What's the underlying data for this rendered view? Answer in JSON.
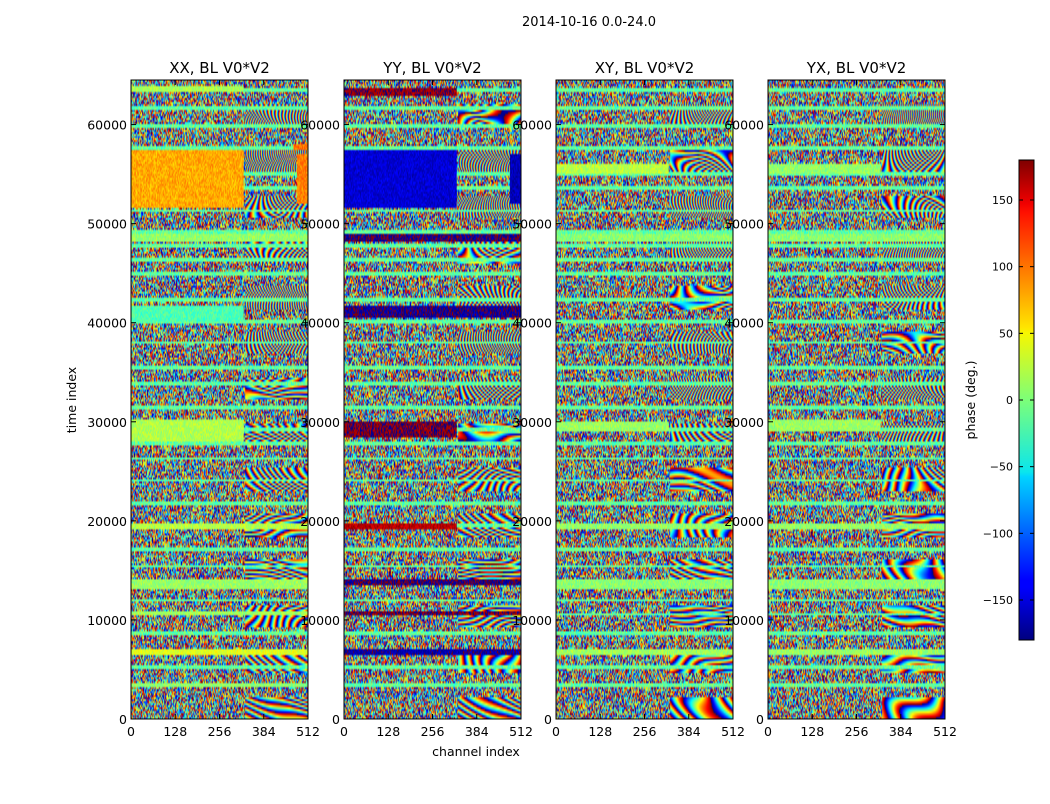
{
  "chart_data": {
    "type": "heatmap",
    "suptitle": "2014-10-16 0.0-24.0",
    "xlabel": "channel index",
    "ylabel": "time index",
    "colorbar": {
      "label": "phase (deg.)",
      "range": [
        -180,
        180
      ],
      "ticks": [
        -150,
        -100,
        -50,
        0,
        50,
        100,
        150
      ],
      "tick_labels": [
        "−150",
        "−100",
        "−50",
        "0",
        "50",
        "100",
        "150"
      ],
      "colormap": "jet"
    },
    "x_range": [
      0,
      512
    ],
    "y_range": [
      0,
      64500
    ],
    "x_ticks": [
      0,
      128,
      256,
      384,
      512
    ],
    "y_ticks": [
      0,
      10000,
      20000,
      30000,
      40000,
      50000,
      60000
    ],
    "panels": [
      {
        "title": "XX, BL V0*V2",
        "features": [
          {
            "t0": 51500,
            "t1": 57500,
            "c0": 0,
            "c1": 325,
            "phase": 75
          },
          {
            "t0": 57500,
            "t1": 58000,
            "c0": 470,
            "c1": 512,
            "phase": 95
          },
          {
            "t0": 52000,
            "t1": 57000,
            "c0": 480,
            "c1": 512,
            "phase": 90
          },
          {
            "t0": 40200,
            "t1": 41800,
            "c0": 0,
            "c1": 325,
            "phase": -18
          },
          {
            "t0": 28000,
            "t1": 30200,
            "c0": 0,
            "c1": 325,
            "phase": 18
          },
          {
            "t0": 63200,
            "t1": 63800,
            "c0": 0,
            "c1": 325,
            "phase": 15
          },
          {
            "t0": 48200,
            "t1": 49000,
            "c0": 0,
            "c1": 512,
            "phase": 8
          },
          {
            "t0": 19200,
            "t1": 19800,
            "c0": 0,
            "c1": 512,
            "phase": 20
          },
          {
            "t0": 13200,
            "t1": 14200,
            "c0": 0,
            "c1": 512,
            "phase": 10
          },
          {
            "t0": 10400,
            "t1": 10900,
            "c0": 0,
            "c1": 512,
            "phase": 12
          },
          {
            "t0": 6400,
            "t1": 7000,
            "c0": 0,
            "c1": 512,
            "phase": 35
          },
          {
            "t0": 3200,
            "t1": 3700,
            "c0": 0,
            "c1": 512,
            "phase": 5
          }
        ]
      },
      {
        "title": "YY, BL V0*V2",
        "features": [
          {
            "t0": 51500,
            "t1": 57500,
            "c0": 0,
            "c1": 325,
            "phase": -150
          },
          {
            "t0": 52000,
            "t1": 57000,
            "c0": 480,
            "c1": 512,
            "phase": -160
          },
          {
            "t0": 62800,
            "t1": 63600,
            "c0": 0,
            "c1": 325,
            "phase": 170
          },
          {
            "t0": 40500,
            "t1": 41800,
            "c0": 0,
            "c1": 512,
            "phase": -170
          },
          {
            "t0": 28500,
            "t1": 30000,
            "c0": 0,
            "c1": 325,
            "phase": 175
          },
          {
            "t0": 48200,
            "t1": 49000,
            "c0": 0,
            "c1": 512,
            "phase": -175
          },
          {
            "t0": 19200,
            "t1": 19800,
            "c0": 0,
            "c1": 325,
            "phase": 160
          },
          {
            "t0": 13500,
            "t1": 14100,
            "c0": 0,
            "c1": 512,
            "phase": -175
          },
          {
            "t0": 6400,
            "t1": 7000,
            "c0": 0,
            "c1": 512,
            "phase": -165
          },
          {
            "t0": 10400,
            "t1": 10900,
            "c0": 0,
            "c1": 512,
            "phase": 175
          }
        ]
      },
      {
        "title": "XY, BL V0*V2",
        "features": [
          {
            "t0": 55000,
            "t1": 56000,
            "c0": 0,
            "c1": 325,
            "phase": 20
          },
          {
            "t0": 48200,
            "t1": 49000,
            "c0": 0,
            "c1": 512,
            "phase": 5
          },
          {
            "t0": 29000,
            "t1": 30000,
            "c0": 0,
            "c1": 325,
            "phase": 10
          },
          {
            "t0": 19200,
            "t1": 19800,
            "c0": 0,
            "c1": 512,
            "phase": 8
          },
          {
            "t0": 13200,
            "t1": 14200,
            "c0": 0,
            "c1": 512,
            "phase": 5
          },
          {
            "t0": 6400,
            "t1": 7000,
            "c0": 0,
            "c1": 512,
            "phase": 12
          }
        ]
      },
      {
        "title": "YX, BL V0*V2",
        "features": [
          {
            "t0": 55000,
            "t1": 56000,
            "c0": 0,
            "c1": 325,
            "phase": 8
          },
          {
            "t0": 48200,
            "t1": 49000,
            "c0": 0,
            "c1": 512,
            "phase": 5
          },
          {
            "t0": 29000,
            "t1": 30200,
            "c0": 0,
            "c1": 325,
            "phase": 10
          },
          {
            "t0": 19200,
            "t1": 19800,
            "c0": 0,
            "c1": 512,
            "phase": 8
          },
          {
            "t0": 13200,
            "t1": 14200,
            "c0": 0,
            "c1": 512,
            "phase": 5
          },
          {
            "t0": 6400,
            "t1": 7000,
            "c0": 0,
            "c1": 512,
            "phase": 10
          }
        ]
      }
    ],
    "clean_bands": [
      3400,
      5200,
      6700,
      8600,
      10600,
      12000,
      13700,
      15400,
      17200,
      19500,
      21700,
      24100,
      26300,
      27800,
      29200,
      31400,
      33800,
      35500,
      38000,
      40100,
      42300,
      44900,
      46400,
      47800,
      49200,
      51300,
      53600,
      55100,
      57600,
      59900,
      61600,
      63500
    ]
  }
}
